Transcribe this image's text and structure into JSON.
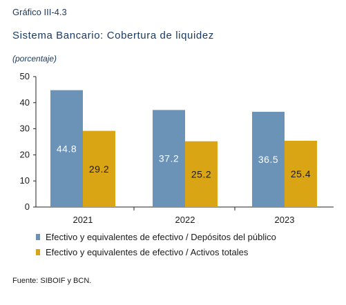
{
  "header": {
    "figure_number": "Gráfico III-4.3",
    "title": "Sistema Bancario: Cobertura de liquidez",
    "subtitle": "(porcentaje)"
  },
  "footer": {
    "source": "Fuente: SIBOIF y BCN."
  },
  "chart_data": {
    "type": "bar",
    "categories": [
      "2021",
      "2022",
      "2023"
    ],
    "series": [
      {
        "name": "Efectivo y equivalentes de efectivo / Depósitos del público",
        "values": [
          44.8,
          37.2,
          36.5
        ],
        "color": "#6b93b8",
        "label_color": "#ffffff"
      },
      {
        "name": "Efectivo y equivalentes de efectivo / Activos totales",
        "values": [
          29.2,
          25.2,
          25.4
        ],
        "color": "#d9a514",
        "label_color": "#1a1a1a"
      }
    ],
    "value_labels": [
      [
        "44.8",
        "37.2",
        "36.5"
      ],
      [
        "29.2",
        "25.2",
        "25.4"
      ]
    ],
    "yticks": [
      "0",
      "10",
      "20",
      "30",
      "40",
      "50"
    ],
    "ylim": [
      0,
      50
    ],
    "grid": false,
    "legend_position": "bottom"
  }
}
